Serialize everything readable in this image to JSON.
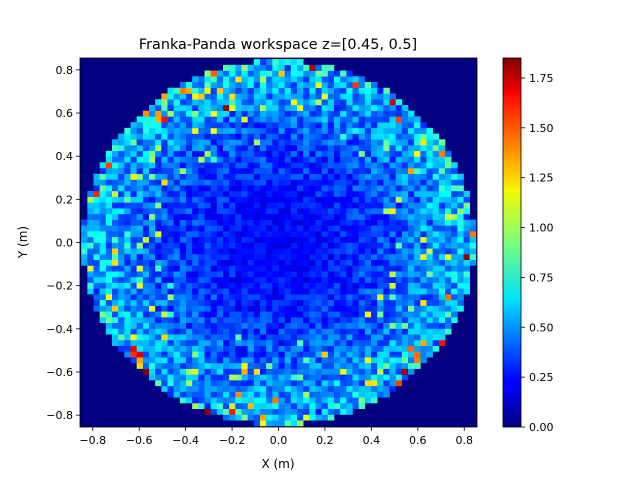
{
  "chart_data": {
    "type": "heatmap",
    "title": "Franka-Panda workspace z=[0.45, 0.5]",
    "xlabel": "X (m)",
    "ylabel": "Y (m)",
    "xlim": [
      -0.855,
      0.855
    ],
    "ylim": [
      -0.855,
      0.855
    ],
    "xticks": [
      -0.8,
      -0.6,
      -0.4,
      -0.2,
      0.0,
      0.2,
      0.4,
      0.6,
      0.8
    ],
    "yticks": [
      -0.8,
      -0.6,
      -0.4,
      -0.2,
      0.0,
      0.2,
      0.4,
      0.6,
      0.8
    ],
    "colorbar": {
      "colormap": "jet",
      "vmin": 0.0,
      "vmax": 1.85,
      "ticks": [
        0.0,
        0.25,
        0.5,
        0.75,
        1.0,
        1.25,
        1.5,
        1.75
      ]
    },
    "grid": false,
    "data_extent_radius": 0.85,
    "background_value": 0.0,
    "pattern": "Circular workspace of radius ~0.85 m; low values (~0.2-0.3) at the center, rising toward the rim (~0.5-0.8) with scattered high cells up to ~1.8 near the edge",
    "peak_cells": [
      {
        "x": -0.23,
        "y": 0.63,
        "value": 1.8
      },
      {
        "x": 0.7,
        "y": -0.46,
        "value": 1.6
      },
      {
        "x": 0.52,
        "y": -0.66,
        "value": 1.5
      },
      {
        "x": 0.55,
        "y": -0.66,
        "value": 1.5
      },
      {
        "x": 0.53,
        "y": 0.58,
        "value": 1.5
      },
      {
        "x": -0.52,
        "y": 0.58,
        "value": 1.3
      },
      {
        "x": -0.48,
        "y": 0.57,
        "value": 1.6
      },
      {
        "x": 0.4,
        "y": -0.66,
        "value": 1.2
      },
      {
        "x": 0.84,
        "y": 0.05,
        "value": 1.4
      },
      {
        "x": -0.81,
        "y": -0.11,
        "value": 1.1
      },
      {
        "x": 0.62,
        "y": 0.47,
        "value": 1.2
      }
    ]
  }
}
